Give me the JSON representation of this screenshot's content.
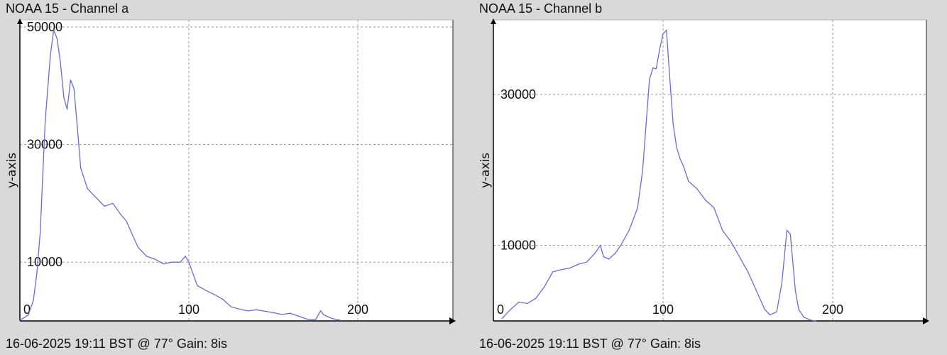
{
  "chart_data": [
    {
      "type": "line",
      "title": "NOAA 15 - Channel a",
      "footer": "16-06-2025 19:11 BST @ 77° Gain: 8is",
      "xlabel": "",
      "ylabel": "y-axis",
      "xlim": [
        0,
        250
      ],
      "ylim": [
        0,
        50000
      ],
      "x_ticks": [
        0,
        100,
        200
      ],
      "y_ticks": [
        10000,
        30000,
        50000
      ],
      "grid": true,
      "series_color": "#6b6bd4",
      "x": [
        0,
        5,
        8,
        10,
        12,
        15,
        18,
        20,
        22,
        24,
        26,
        28,
        30,
        32,
        34,
        36,
        40,
        45,
        50,
        55,
        60,
        63,
        66,
        70,
        75,
        80,
        85,
        90,
        95,
        98,
        100,
        105,
        110,
        115,
        120,
        125,
        130,
        135,
        140,
        150,
        155,
        160,
        165,
        170,
        175,
        178,
        180,
        185,
        190
      ],
      "series": [
        {
          "values": [
            100,
            1000,
            3500,
            8000,
            15000,
            34000,
            45000,
            49500,
            48000,
            44000,
            38000,
            36000,
            41000,
            39500,
            33000,
            26000,
            22500,
            21000,
            19500,
            20000,
            18000,
            17000,
            15000,
            12500,
            11000,
            10500,
            9700,
            10000,
            10000,
            11000,
            10000,
            6000,
            5200,
            4500,
            3700,
            2400,
            2000,
            1700,
            1900,
            1400,
            1100,
            1300,
            800,
            300,
            200,
            1700,
            1000,
            400,
            100
          ]
        }
      ]
    },
    {
      "type": "line",
      "title": "NOAA 15 - Channel b",
      "footer": "16-06-2025 19:11 BST @ 77° Gain: 8is",
      "xlabel": "",
      "ylabel": "y-axis",
      "xlim": [
        0,
        250
      ],
      "ylim": [
        0,
        40000
      ],
      "x_ticks": [
        0,
        100,
        200
      ],
      "y_ticks": [
        10000,
        30000
      ],
      "grid": true,
      "series_color": "#6b6bd4",
      "x": [
        5,
        10,
        15,
        20,
        25,
        30,
        35,
        40,
        45,
        50,
        55,
        60,
        63,
        65,
        68,
        72,
        75,
        80,
        85,
        88,
        90,
        92,
        94,
        96,
        98,
        100,
        102,
        104,
        106,
        108,
        110,
        112,
        115,
        120,
        125,
        130,
        135,
        140,
        145,
        150,
        155,
        160,
        163,
        167,
        170,
        173,
        175,
        178,
        180,
        183,
        187,
        190
      ],
      "series": [
        {
          "values": [
            300,
            1500,
            2500,
            2300,
            3000,
            4500,
            6500,
            6800,
            7000,
            7500,
            7800,
            9000,
            10000,
            8500,
            8200,
            9000,
            10000,
            12000,
            15000,
            20000,
            26000,
            32000,
            33500,
            33400,
            36000,
            38000,
            38500,
            32000,
            26000,
            23000,
            21500,
            20500,
            18500,
            17500,
            16000,
            15000,
            12000,
            10500,
            8500,
            6500,
            4000,
            1500,
            800,
            1200,
            5000,
            12000,
            11500,
            4000,
            1500,
            500,
            100,
            0
          ]
        }
      ]
    }
  ]
}
